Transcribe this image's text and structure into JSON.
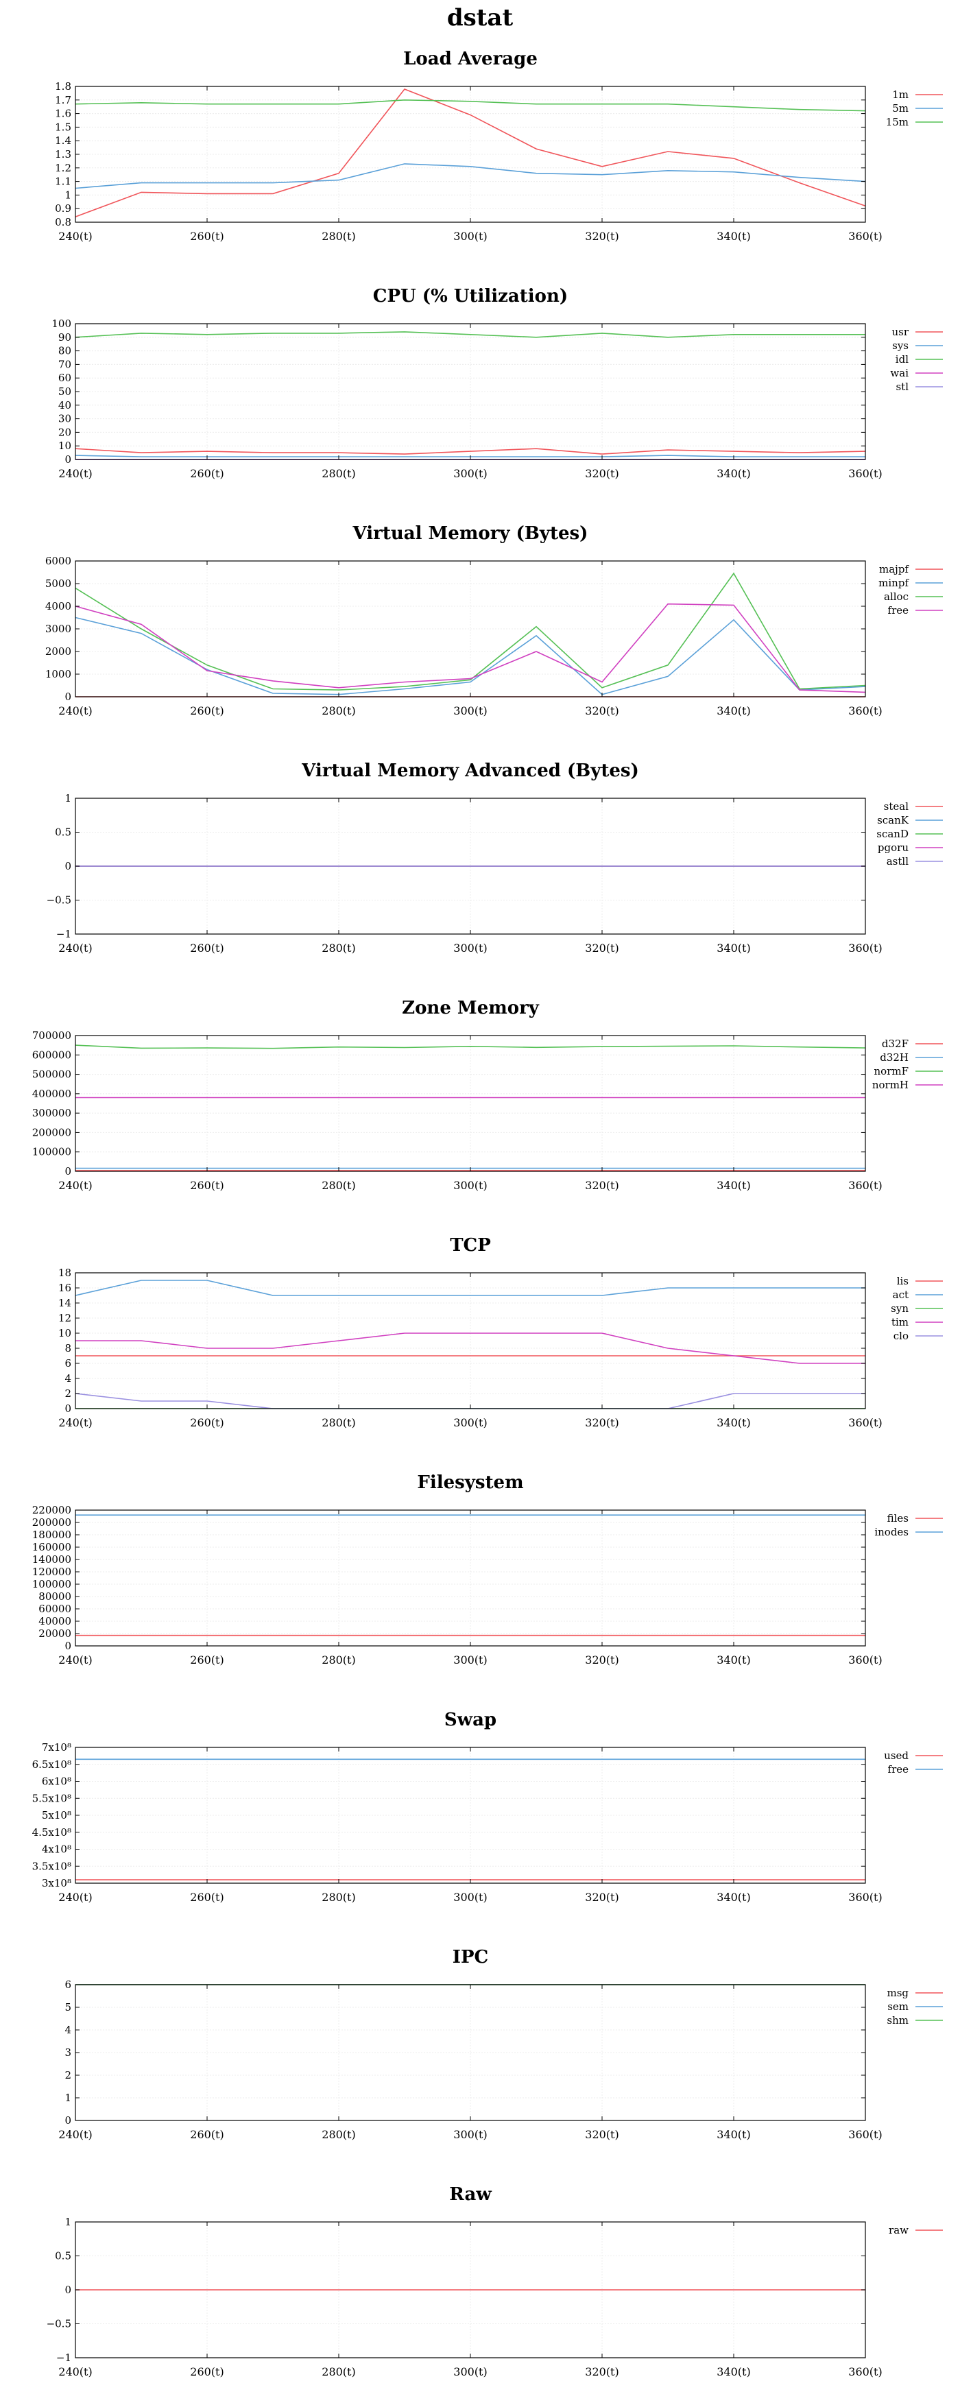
{
  "page": {
    "title": "dstat"
  },
  "x_ticks": [
    240,
    260,
    280,
    300,
    320,
    340,
    360
  ],
  "x_tick_suffix": "(t)",
  "chart_data": [
    {
      "type": "line",
      "title": "Load Average",
      "x": [
        240,
        250,
        260,
        270,
        280,
        290,
        300,
        310,
        320,
        330,
        340,
        350,
        360
      ],
      "ylim": [
        0.8,
        1.8
      ],
      "yticks": [
        "0.8",
        "0.9",
        "1",
        "1.1",
        "1.2",
        "1.3",
        "1.4",
        "1.5",
        "1.6",
        "1.7",
        "1.8"
      ],
      "ytick_values": [
        0.8,
        0.9,
        1.0,
        1.1,
        1.2,
        1.3,
        1.4,
        1.5,
        1.6,
        1.7,
        1.8
      ],
      "series": [
        {
          "name": "1m",
          "color": "#f0555a",
          "values": [
            0.84,
            1.02,
            1.01,
            1.01,
            1.16,
            1.78,
            1.59,
            1.34,
            1.21,
            1.32,
            1.27,
            1.09,
            0.92
          ]
        },
        {
          "name": "5m",
          "color": "#5aa0d8",
          "values": [
            1.05,
            1.09,
            1.09,
            1.09,
            1.11,
            1.23,
            1.21,
            1.16,
            1.15,
            1.18,
            1.17,
            1.13,
            1.1
          ]
        },
        {
          "name": "15m",
          "color": "#55c055",
          "values": [
            1.67,
            1.68,
            1.67,
            1.67,
            1.67,
            1.7,
            1.69,
            1.67,
            1.67,
            1.67,
            1.65,
            1.63,
            1.62
          ]
        }
      ]
    },
    {
      "type": "line",
      "title": "CPU (% Utilization)",
      "x": [
        240,
        250,
        260,
        270,
        280,
        290,
        300,
        310,
        320,
        330,
        340,
        350,
        360
      ],
      "ylim": [
        0,
        100
      ],
      "yticks": [
        "0",
        "10",
        "20",
        "30",
        "40",
        "50",
        "60",
        "70",
        "80",
        "90",
        "100"
      ],
      "ytick_values": [
        0,
        10,
        20,
        30,
        40,
        50,
        60,
        70,
        80,
        90,
        100
      ],
      "series": [
        {
          "name": "usr",
          "color": "#f0555a",
          "values": [
            8,
            5,
            6,
            5,
            5,
            4,
            6,
            8,
            4,
            7,
            6,
            5,
            6
          ]
        },
        {
          "name": "sys",
          "color": "#5aa0d8",
          "values": [
            3,
            2,
            2,
            2,
            2,
            2,
            2,
            2,
            2,
            3,
            2,
            2,
            2
          ]
        },
        {
          "name": "idl",
          "color": "#55c055",
          "values": [
            90,
            93,
            92,
            93,
            93,
            94,
            92,
            90,
            93,
            90,
            92,
            92,
            92
          ]
        },
        {
          "name": "wai",
          "color": "#d040c0",
          "values": [
            0,
            0,
            0,
            0,
            0,
            0,
            0,
            0,
            0,
            0,
            0,
            0,
            0
          ]
        },
        {
          "name": "stl",
          "color": "#9a90e0",
          "values": [
            0,
            0,
            0,
            0,
            0,
            0,
            0,
            0,
            0,
            0,
            0,
            0,
            0
          ]
        }
      ]
    },
    {
      "type": "line",
      "title": "Virtual Memory (Bytes)",
      "x": [
        240,
        250,
        260,
        270,
        280,
        290,
        300,
        310,
        320,
        330,
        340,
        350,
        360
      ],
      "ylim": [
        0,
        6000
      ],
      "yticks": [
        "0",
        "1000",
        "2000",
        "3000",
        "4000",
        "5000",
        "6000"
      ],
      "ytick_values": [
        0,
        1000,
        2000,
        3000,
        4000,
        5000,
        6000
      ],
      "series": [
        {
          "name": "majpf",
          "color": "#f0555a",
          "values": [
            0,
            0,
            0,
            0,
            0,
            0,
            0,
            0,
            0,
            0,
            0,
            0,
            0
          ]
        },
        {
          "name": "minpf",
          "color": "#5aa0d8",
          "values": [
            3500,
            2800,
            1200,
            150,
            100,
            350,
            650,
            2700,
            100,
            900,
            3400,
            300,
            450
          ]
        },
        {
          "name": "alloc",
          "color": "#55c055",
          "values": [
            4800,
            3000,
            1400,
            350,
            300,
            450,
            750,
            3100,
            400,
            1400,
            5450,
            350,
            500
          ]
        },
        {
          "name": "free",
          "color": "#d040c0",
          "values": [
            4000,
            3200,
            1150,
            700,
            400,
            650,
            800,
            2000,
            650,
            4100,
            4050,
            300,
            200
          ]
        }
      ]
    },
    {
      "type": "line",
      "title": "Virtual Memory Advanced (Bytes)",
      "x": [
        240,
        250,
        260,
        270,
        280,
        290,
        300,
        310,
        320,
        330,
        340,
        350,
        360
      ],
      "ylim": [
        -1,
        1
      ],
      "yticks": [
        "−1",
        "−0.5",
        "0",
        "0.5",
        "1"
      ],
      "ytick_values": [
        -1,
        -0.5,
        0,
        0.5,
        1
      ],
      "series": [
        {
          "name": "steal",
          "color": "#f0555a",
          "values": [
            0,
            0,
            0,
            0,
            0,
            0,
            0,
            0,
            0,
            0,
            0,
            0,
            0
          ]
        },
        {
          "name": "scanK",
          "color": "#5aa0d8",
          "values": [
            0,
            0,
            0,
            0,
            0,
            0,
            0,
            0,
            0,
            0,
            0,
            0,
            0
          ]
        },
        {
          "name": "scanD",
          "color": "#55c055",
          "values": [
            0,
            0,
            0,
            0,
            0,
            0,
            0,
            0,
            0,
            0,
            0,
            0,
            0
          ]
        },
        {
          "name": "pgoru",
          "color": "#d040c0",
          "values": [
            0,
            0,
            0,
            0,
            0,
            0,
            0,
            0,
            0,
            0,
            0,
            0,
            0
          ]
        },
        {
          "name": "astll",
          "color": "#9a90e0",
          "values": [
            0,
            0,
            0,
            0,
            0,
            0,
            0,
            0,
            0,
            0,
            0,
            0,
            0
          ]
        }
      ]
    },
    {
      "type": "line",
      "title": "Zone Memory",
      "x": [
        240,
        250,
        260,
        270,
        280,
        290,
        300,
        310,
        320,
        330,
        340,
        350,
        360
      ],
      "ylim": [
        0,
        700000
      ],
      "yticks": [
        "0",
        "100000",
        "200000",
        "300000",
        "400000",
        "500000",
        "600000",
        "700000"
      ],
      "ytick_values": [
        0,
        100000,
        200000,
        300000,
        400000,
        500000,
        600000,
        700000
      ],
      "series": [
        {
          "name": "d32F",
          "color": "#f0555a",
          "values": [
            3900,
            3900,
            3900,
            3900,
            3900,
            3900,
            3900,
            3900,
            3900,
            3900,
            3900,
            3900,
            3900
          ]
        },
        {
          "name": "d32H",
          "color": "#5aa0d8",
          "values": [
            16000,
            16000,
            16000,
            16000,
            16000,
            16000,
            16000,
            16000,
            16000,
            16000,
            16000,
            16000,
            16000
          ]
        },
        {
          "name": "normF",
          "color": "#55c055",
          "values": [
            650000,
            635000,
            636000,
            634000,
            641000,
            638000,
            644000,
            639000,
            643000,
            645000,
            647000,
            641000,
            636000
          ]
        },
        {
          "name": "normH",
          "color": "#d040c0",
          "values": [
            380000,
            380000,
            380000,
            380000,
            380000,
            380000,
            380000,
            380000,
            380000,
            380000,
            380000,
            380000,
            380000
          ]
        }
      ]
    },
    {
      "type": "line",
      "title": "TCP",
      "x": [
        240,
        250,
        260,
        270,
        280,
        290,
        300,
        310,
        320,
        330,
        340,
        350,
        360
      ],
      "ylim": [
        0,
        18
      ],
      "yticks": [
        "0",
        "2",
        "4",
        "6",
        "8",
        "10",
        "12",
        "14",
        "16",
        "18"
      ],
      "ytick_values": [
        0,
        2,
        4,
        6,
        8,
        10,
        12,
        14,
        16,
        18
      ],
      "series": [
        {
          "name": "lis",
          "color": "#f0555a",
          "values": [
            7,
            7,
            7,
            7,
            7,
            7,
            7,
            7,
            7,
            7,
            7,
            7,
            7
          ]
        },
        {
          "name": "act",
          "color": "#5aa0d8",
          "values": [
            15,
            17,
            17,
            15,
            15,
            15,
            15,
            15,
            15,
            16,
            16,
            16,
            16
          ]
        },
        {
          "name": "syn",
          "color": "#55c055",
          "values": [
            0,
            0,
            0,
            0,
            0,
            0,
            0,
            0,
            0,
            0,
            0,
            0,
            0
          ]
        },
        {
          "name": "tim",
          "color": "#d040c0",
          "values": [
            9,
            9,
            8,
            8,
            9,
            10,
            10,
            10,
            10,
            8,
            7,
            6,
            6
          ]
        },
        {
          "name": "clo",
          "color": "#9a90e0",
          "values": [
            2,
            1,
            1,
            0,
            0,
            0,
            0,
            0,
            0,
            0,
            2,
            2,
            2
          ]
        }
      ]
    },
    {
      "type": "line",
      "title": "Filesystem",
      "x": [
        240,
        250,
        260,
        270,
        280,
        290,
        300,
        310,
        320,
        330,
        340,
        350,
        360
      ],
      "ylim": [
        0,
        220000
      ],
      "yticks": [
        "0",
        "20000",
        "40000",
        "60000",
        "80000",
        "100000",
        "120000",
        "140000",
        "160000",
        "180000",
        "200000",
        "220000"
      ],
      "ytick_values": [
        0,
        20000,
        40000,
        60000,
        80000,
        100000,
        120000,
        140000,
        160000,
        180000,
        200000,
        220000
      ],
      "series": [
        {
          "name": "files",
          "color": "#f0555a",
          "values": [
            17000,
            17000,
            17000,
            17000,
            17000,
            17000,
            17000,
            17000,
            17000,
            17000,
            17000,
            17000,
            17000
          ]
        },
        {
          "name": "inodes",
          "color": "#5aa0d8",
          "values": [
            212000,
            212000,
            212000,
            212000,
            212000,
            212000,
            212000,
            212000,
            212000,
            212000,
            212000,
            212000,
            212000
          ]
        }
      ]
    },
    {
      "type": "line",
      "title": "Swap",
      "x": [
        240,
        250,
        260,
        270,
        280,
        290,
        300,
        310,
        320,
        330,
        340,
        350,
        360
      ],
      "ylim": [
        300000000,
        700000000
      ],
      "yticks": [
        "3x10⁸",
        "3.5x10⁸",
        "4x10⁸",
        "4.5x10⁸",
        "5x10⁸",
        "5.5x10⁸",
        "6x10⁸",
        "6.5x10⁸",
        "7x10⁸"
      ],
      "ytick_values": [
        300000000,
        350000000,
        400000000,
        450000000,
        500000000,
        550000000,
        600000000,
        650000000,
        700000000
      ],
      "series": [
        {
          "name": "used",
          "color": "#f0555a",
          "values": [
            310000000,
            310000000,
            310000000,
            310000000,
            310000000,
            310000000,
            310000000,
            310000000,
            310000000,
            310000000,
            310000000,
            310000000,
            310000000
          ]
        },
        {
          "name": "free",
          "color": "#5aa0d8",
          "values": [
            665000000,
            665000000,
            665000000,
            665000000,
            665000000,
            665000000,
            665000000,
            665000000,
            665000000,
            665000000,
            665000000,
            665000000,
            665000000
          ]
        }
      ]
    },
    {
      "type": "line",
      "title": "IPC",
      "x": [
        240,
        250,
        260,
        270,
        280,
        290,
        300,
        310,
        320,
        330,
        340,
        350,
        360
      ],
      "ylim": [
        0,
        6
      ],
      "yticks": [
        "0",
        "1",
        "2",
        "3",
        "4",
        "5",
        "6"
      ],
      "ytick_values": [
        0,
        1,
        2,
        3,
        4,
        5,
        6
      ],
      "series": [
        {
          "name": "msg",
          "color": "#f0555a",
          "values": [
            6,
            6,
            6,
            6,
            6,
            6,
            6,
            6,
            6,
            6,
            6,
            6,
            6
          ]
        },
        {
          "name": "sem",
          "color": "#5aa0d8",
          "values": [
            6,
            6,
            6,
            6,
            6,
            6,
            6,
            6,
            6,
            6,
            6,
            6,
            6
          ]
        },
        {
          "name": "shm",
          "color": "#55c055",
          "values": [
            6,
            6,
            6,
            6,
            6,
            6,
            6,
            6,
            6,
            6,
            6,
            6,
            6
          ]
        }
      ]
    },
    {
      "type": "line",
      "title": "Raw",
      "x": [
        240,
        250,
        260,
        270,
        280,
        290,
        300,
        310,
        320,
        330,
        340,
        350,
        360
      ],
      "ylim": [
        -1,
        1
      ],
      "yticks": [
        "−1",
        "−0.5",
        "0",
        "0.5",
        "1"
      ],
      "ytick_values": [
        -1,
        -0.5,
        0,
        0.5,
        1
      ],
      "series": [
        {
          "name": "raw",
          "color": "#f0555a",
          "values": [
            0,
            0,
            0,
            0,
            0,
            0,
            0,
            0,
            0,
            0,
            0,
            0,
            0
          ]
        }
      ]
    }
  ]
}
